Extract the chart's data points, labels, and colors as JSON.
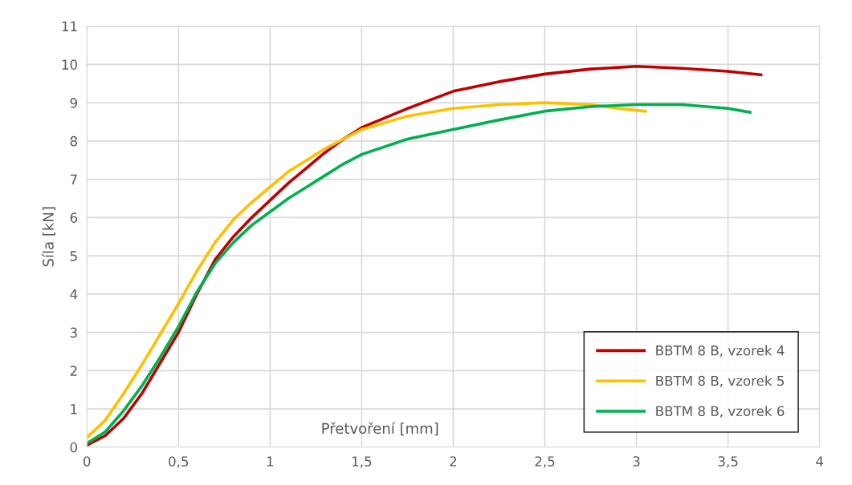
{
  "chart_data": {
    "type": "line",
    "xlabel": "Přetvoření [mm]",
    "ylabel": "Síla [kN]",
    "xlim": [
      0,
      4
    ],
    "xticks": [
      0,
      {
        "value": 0.5,
        "label": "0,5"
      },
      1,
      {
        "value": 1.5,
        "label": "1,5"
      },
      2,
      {
        "value": 2.5,
        "label": "2,5"
      },
      3,
      {
        "value": 3.5,
        "label": "3,5"
      },
      4
    ],
    "ylim": [
      0,
      11
    ],
    "yticks": [
      0,
      1,
      2,
      3,
      4,
      5,
      6,
      7,
      8,
      9,
      10,
      11
    ],
    "grid": true,
    "legend": "bottom right",
    "marker": "none",
    "line_style": "solid",
    "series": [
      {
        "name": "BBTM 8 B, vzorek 4",
        "color": "#c00000",
        "x": [
          0,
          0.1,
          0.2,
          0.3,
          0.4,
          0.5,
          0.6,
          0.7,
          0.8,
          0.9,
          1.0,
          1.1,
          1.2,
          1.3,
          1.4,
          1.5,
          1.75,
          2.0,
          2.25,
          2.5,
          2.75,
          3.0,
          3.25,
          3.5,
          3.68
        ],
        "values": [
          0.05,
          0.3,
          0.75,
          1.4,
          2.2,
          3.0,
          4.0,
          4.9,
          5.5,
          6.0,
          6.45,
          6.9,
          7.3,
          7.7,
          8.05,
          8.35,
          8.85,
          9.3,
          9.55,
          9.75,
          9.88,
          9.95,
          9.9,
          9.82,
          9.73
        ]
      },
      {
        "name": "BBTM 8 B, vzorek 5",
        "color": "#ffc000",
        "x": [
          0,
          0.1,
          0.2,
          0.3,
          0.4,
          0.5,
          0.6,
          0.7,
          0.8,
          0.9,
          1.0,
          1.1,
          1.2,
          1.3,
          1.4,
          1.5,
          1.75,
          2.0,
          2.25,
          2.5,
          2.75,
          2.9,
          3.05
        ],
        "values": [
          0.25,
          0.7,
          1.4,
          2.15,
          2.95,
          3.75,
          4.6,
          5.35,
          5.95,
          6.4,
          6.8,
          7.2,
          7.5,
          7.8,
          8.05,
          8.3,
          8.65,
          8.85,
          8.95,
          9.0,
          8.95,
          8.85,
          8.78
        ]
      },
      {
        "name": "BBTM 8 B, vzorek 6",
        "color": "#00b050",
        "x": [
          0,
          0.1,
          0.2,
          0.3,
          0.4,
          0.5,
          0.6,
          0.7,
          0.8,
          0.9,
          1.0,
          1.1,
          1.2,
          1.3,
          1.4,
          1.5,
          1.75,
          2.0,
          2.25,
          2.5,
          2.75,
          3.0,
          3.25,
          3.5,
          3.62
        ],
        "values": [
          0.1,
          0.4,
          0.95,
          1.6,
          2.35,
          3.15,
          4.05,
          4.8,
          5.35,
          5.8,
          6.15,
          6.5,
          6.8,
          7.1,
          7.4,
          7.65,
          8.05,
          8.3,
          8.55,
          8.78,
          8.9,
          8.95,
          8.95,
          8.85,
          8.75
        ]
      }
    ]
  }
}
